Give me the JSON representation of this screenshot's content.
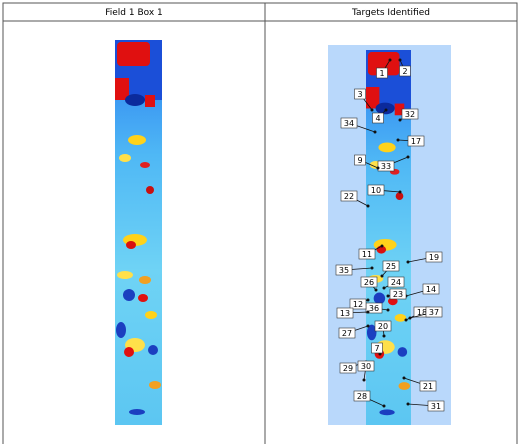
{
  "table": {
    "headers": [
      "Field 1 Box 1",
      "Targets Identified"
    ]
  },
  "targets": [
    "1",
    "2",
    "3",
    "4",
    "32",
    "34",
    "17",
    "33",
    "9",
    "10",
    "22",
    "11",
    "19",
    "35",
    "25",
    "26",
    "24",
    "14",
    "23",
    "36",
    "12",
    "13",
    "18",
    "37",
    "27",
    "20",
    "7",
    "29",
    "30",
    "21",
    "28",
    "31"
  ]
}
